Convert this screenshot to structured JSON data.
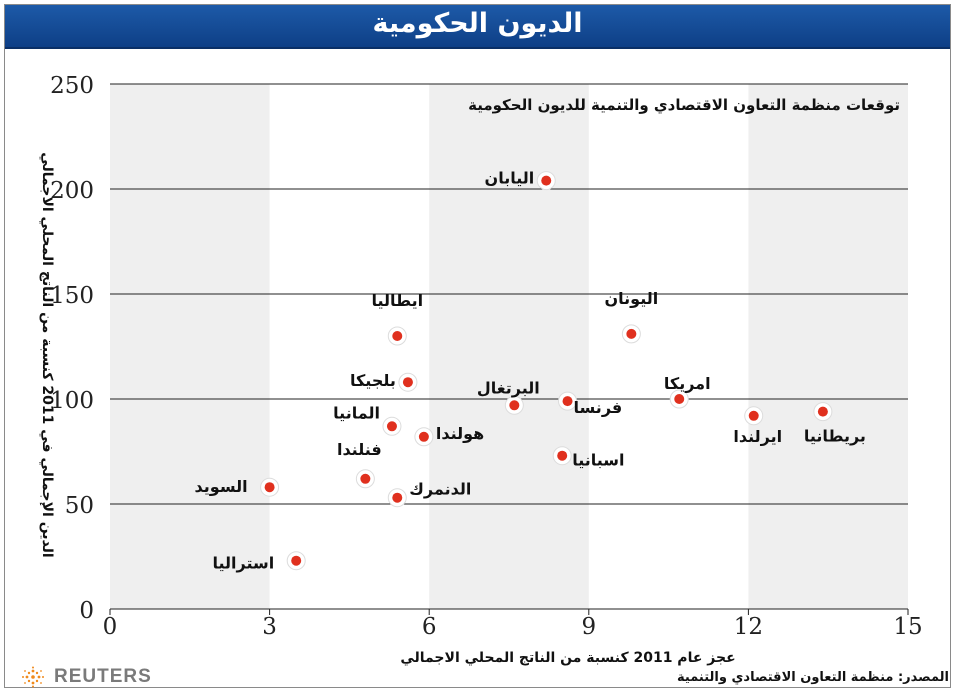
{
  "header": {
    "title": "الديون الحكومية"
  },
  "branding": {
    "agency": "REUTERS",
    "logo_icon": "reuters-dots-logo"
  },
  "footer": {
    "source": "المصدر: منظمة التعاون الاقتصادي والتنمية"
  },
  "colors": {
    "title_bg": "#1450a0",
    "dot": "#e0301e",
    "band": "#efefef"
  },
  "chart_data": {
    "type": "scatter",
    "subtitle": "توقعات منظمة التعاون الاقتصادي والتنمية للديون الحكومية",
    "xlabel": "عجز عام 2011 كنسبة من الناتج المحلي الاجمالي",
    "ylabel": "الدين الإجمالي في 2011 كنسبة من الناتج المحلي الاجمالي",
    "xlim": [
      0,
      15
    ],
    "ylim": [
      0,
      250
    ],
    "x_ticks": [
      "0",
      "3",
      "6",
      "9",
      "12",
      "15"
    ],
    "y_ticks": [
      "0",
      "50",
      "100",
      "150",
      "200",
      "250"
    ],
    "grid": true,
    "points": [
      {
        "label": "اليابان",
        "x": 8.2,
        "y": 204
      },
      {
        "label": "ايطاليا",
        "x": 5.4,
        "y": 130
      },
      {
        "label": "اليونان",
        "x": 9.8,
        "y": 131
      },
      {
        "label": "بلجيكا",
        "x": 5.6,
        "y": 108
      },
      {
        "label": "البرتغال",
        "x": 7.6,
        "y": 97
      },
      {
        "label": "فرنسا",
        "x": 8.6,
        "y": 99
      },
      {
        "label": "امريكا",
        "x": 10.7,
        "y": 100
      },
      {
        "label": "ايرلندا",
        "x": 12.1,
        "y": 92
      },
      {
        "label": "بريطانيا",
        "x": 13.4,
        "y": 94
      },
      {
        "label": "المانيا",
        "x": 5.3,
        "y": 87
      },
      {
        "label": "هولندا",
        "x": 5.9,
        "y": 82
      },
      {
        "label": "اسبانيا",
        "x": 8.5,
        "y": 73
      },
      {
        "label": "فنلندا",
        "x": 4.8,
        "y": 62
      },
      {
        "label": "السويد",
        "x": 3.0,
        "y": 58
      },
      {
        "label": "الدنمرك",
        "x": 5.4,
        "y": 53
      },
      {
        "label": "استراليا",
        "x": 3.5,
        "y": 23
      }
    ]
  }
}
